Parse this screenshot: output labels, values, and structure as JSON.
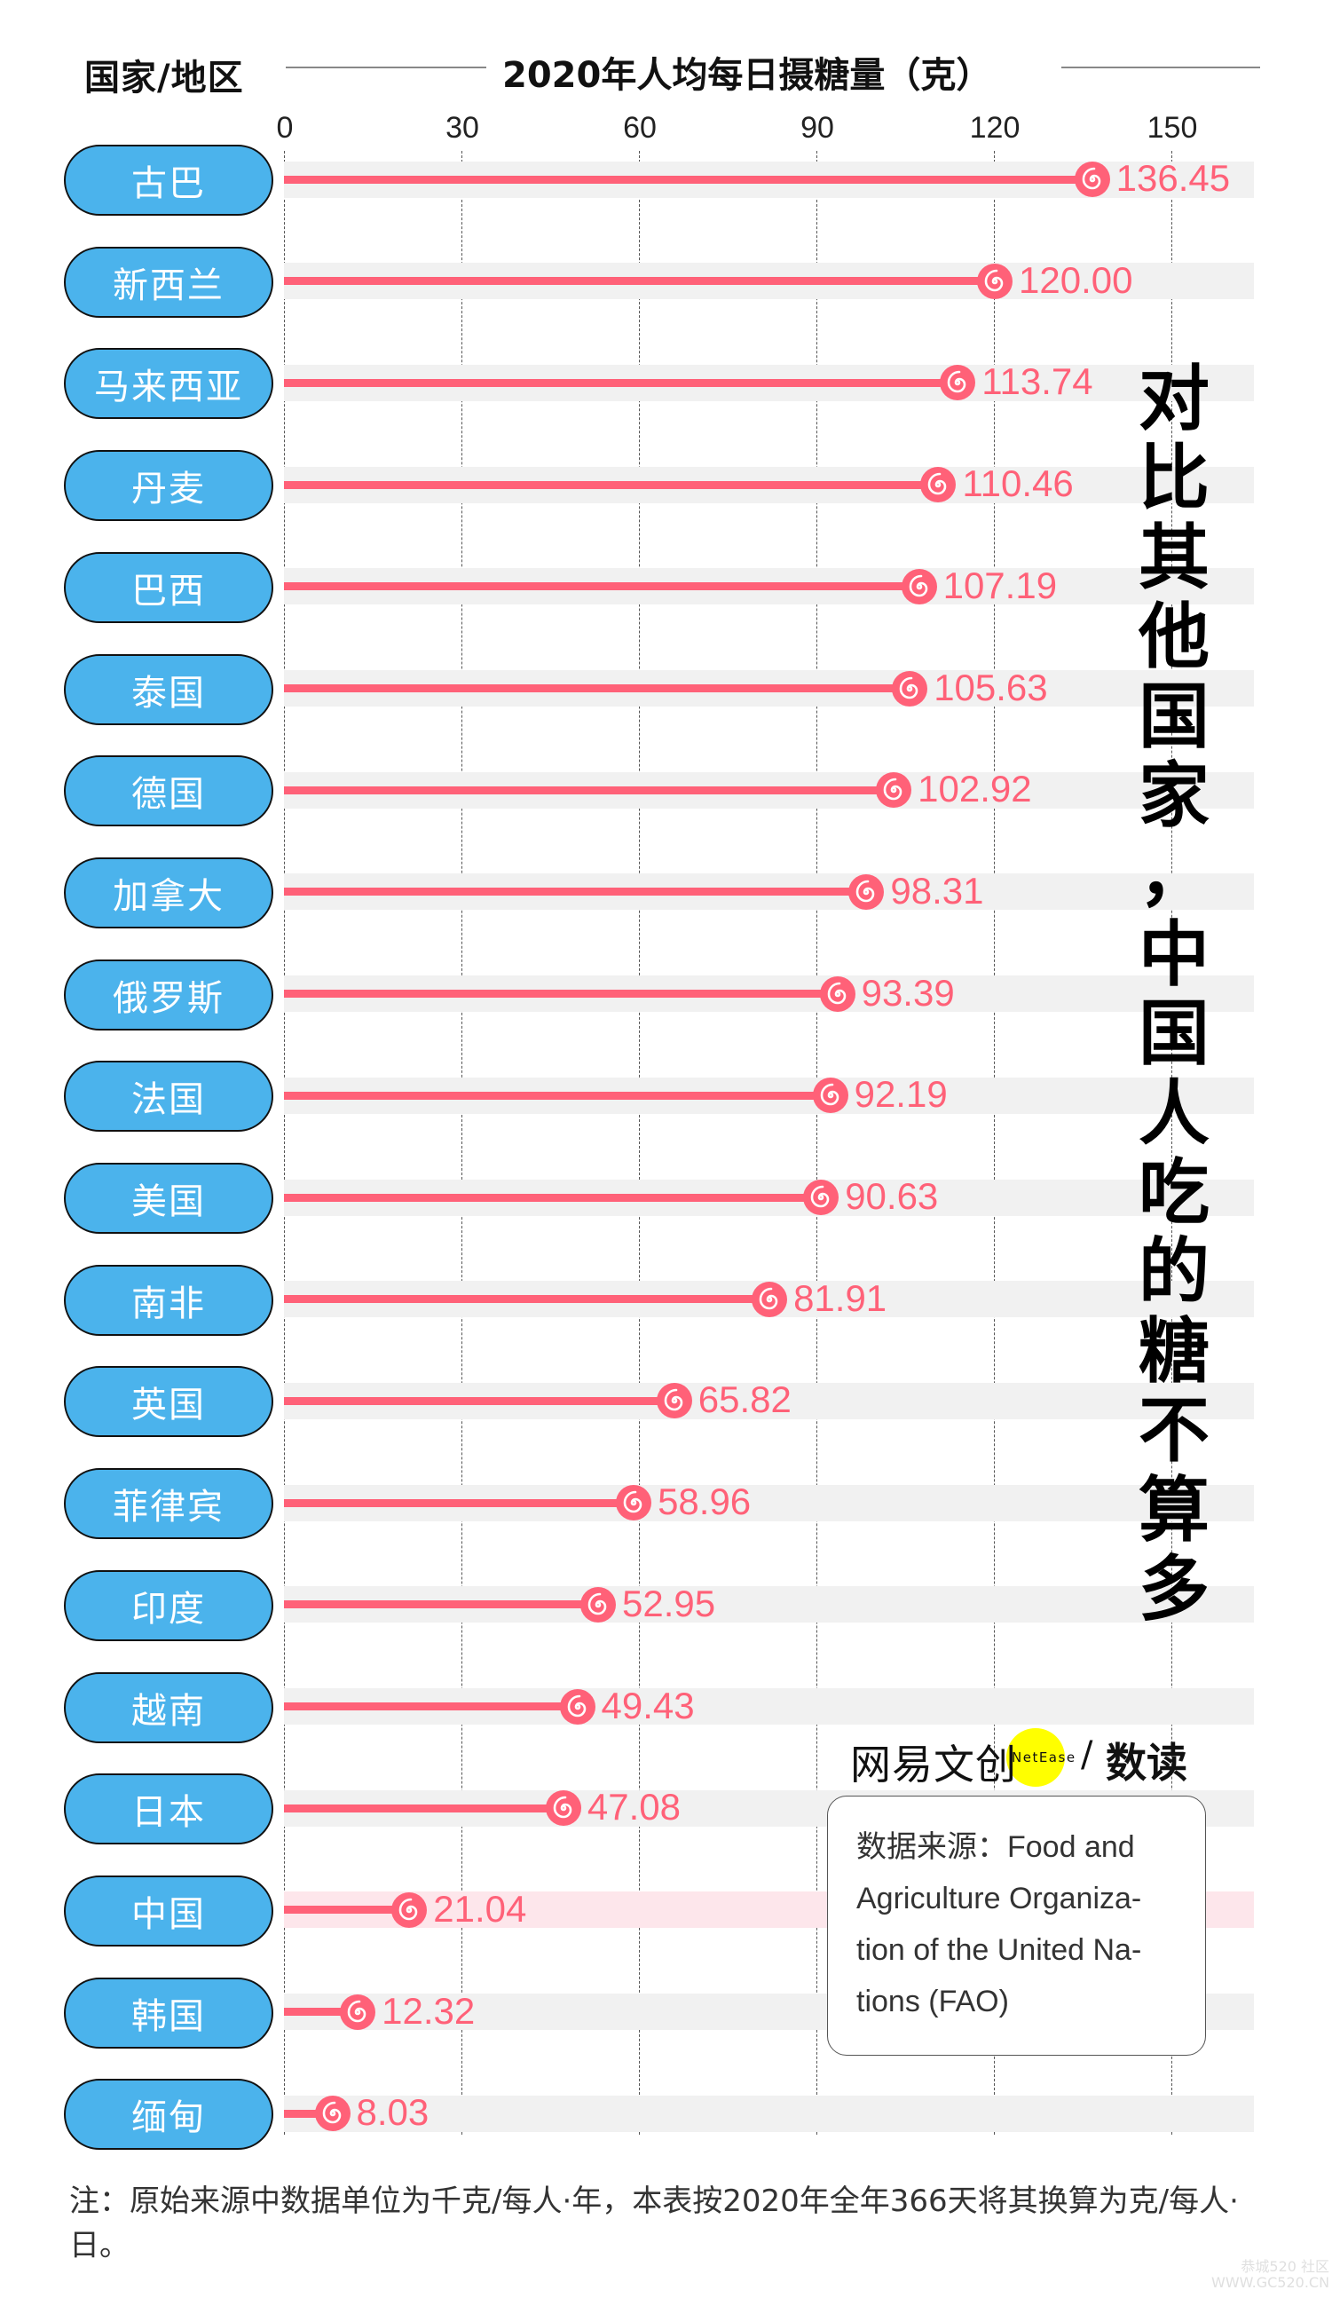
{
  "header": {
    "row_label": "国家/地区",
    "title": "2020年人均每日摄糖量（克）"
  },
  "chart_data": {
    "type": "bar",
    "style": "lollipop",
    "title": "2020年人均每日摄糖量（克）",
    "xlabel": "2020年人均每日摄糖量（克）",
    "ylabel": "国家/地区",
    "xlim": [
      0,
      164
    ],
    "x_ticks": [
      0,
      30,
      60,
      90,
      120,
      150
    ],
    "grid": "vertical dashed",
    "orientation": "horizontal",
    "highlight": "中国",
    "colors": {
      "bar": "#ff6178",
      "pill": "#4bb3ec",
      "track": "#f1f1f1",
      "highlight_track": "#fde6eb"
    },
    "categories": [
      "古巴",
      "新西兰",
      "马来西亚",
      "丹麦",
      "巴西",
      "泰国",
      "德国",
      "加拿大",
      "俄罗斯",
      "法国",
      "美国",
      "南非",
      "英国",
      "菲律宾",
      "印度",
      "越南",
      "日本",
      "中国",
      "韩国",
      "缅甸"
    ],
    "values": [
      136.45,
      120.0,
      113.74,
      110.46,
      107.19,
      105.63,
      102.92,
      98.31,
      93.39,
      92.19,
      90.63,
      81.91,
      65.82,
      58.96,
      52.95,
      49.43,
      47.08,
      21.04,
      12.32,
      8.03
    ],
    "labels": [
      "136.45",
      "120.00",
      "113.74",
      "110.46",
      "107.19",
      "105.63",
      "102.92",
      "98.31",
      "93.39",
      "92.19",
      "90.63",
      "81.91",
      "65.82",
      "58.96",
      "52.95",
      "49.43",
      "47.08",
      "21.04",
      "12.32",
      "8.03"
    ]
  },
  "axis": {
    "ticks": [
      "0",
      "30",
      "60",
      "90",
      "120",
      "150"
    ]
  },
  "headline": [
    "对",
    "比",
    "其",
    "他",
    "国",
    "家",
    "，",
    "中",
    "国",
    "人",
    "吃",
    "的",
    "糖",
    "不",
    "算",
    "多"
  ],
  "logo": {
    "cn": "网易文创",
    "en": "NetEase",
    "slash": "/",
    "section": "数读"
  },
  "source": {
    "text": "数据来源：Food and Agriculture Organiza-tion of the United Na-tions (FAO)"
  },
  "note": "注：原始来源中数据单位为千克/每人·年，本表按2020年全年366天将其换算为克/每人·日。",
  "watermark": {
    "line1": "恭城520 社区",
    "line2": "WWW.GC520.CN"
  }
}
